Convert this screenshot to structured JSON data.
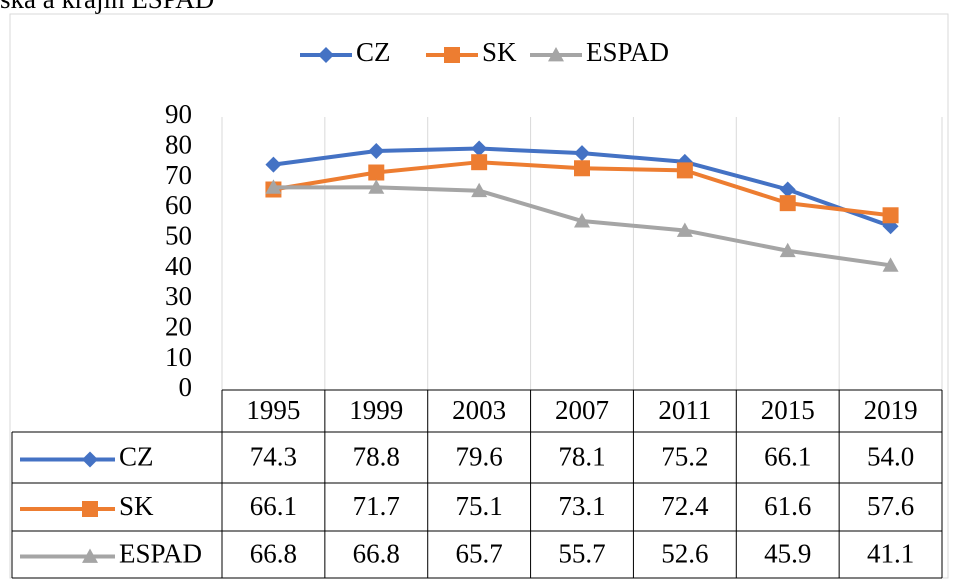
{
  "chart_data": {
    "type": "line",
    "title": "ska a krajin ESPAD",
    "categories": [
      "1995",
      "1999",
      "2003",
      "2007",
      "2011",
      "2015",
      "2019"
    ],
    "series": [
      {
        "name": "CZ",
        "color": "#4472c4",
        "marker": "diamond",
        "values": [
          74.3,
          78.8,
          79.6,
          78.1,
          75.2,
          66.1,
          54.0
        ],
        "value_labels": [
          "74.3",
          "78.8",
          "79.6",
          "78.1",
          "75.2",
          "66.1",
          "54.0"
        ]
      },
      {
        "name": "SK",
        "color": "#ed7d31",
        "marker": "square",
        "values": [
          66.1,
          71.7,
          75.1,
          73.1,
          72.4,
          61.6,
          57.6
        ],
        "value_labels": [
          "66.1",
          "71.7",
          "75.1",
          "73.1",
          "72.4",
          "61.6",
          "57.6"
        ]
      },
      {
        "name": "ESPAD",
        "color": "#a5a5a5",
        "marker": "triangle",
        "values": [
          66.8,
          66.8,
          65.7,
          55.7,
          52.6,
          45.9,
          41.1
        ],
        "value_labels": [
          "66.8",
          "66.8",
          "65.7",
          "55.7",
          "52.6",
          "45.9",
          "41.1"
        ]
      }
    ],
    "ylim": [
      0,
      90
    ],
    "yticks": [
      0,
      10,
      20,
      30,
      40,
      50,
      60,
      70,
      80,
      90
    ],
    "grid": false,
    "legend": "top",
    "data_table": true
  }
}
